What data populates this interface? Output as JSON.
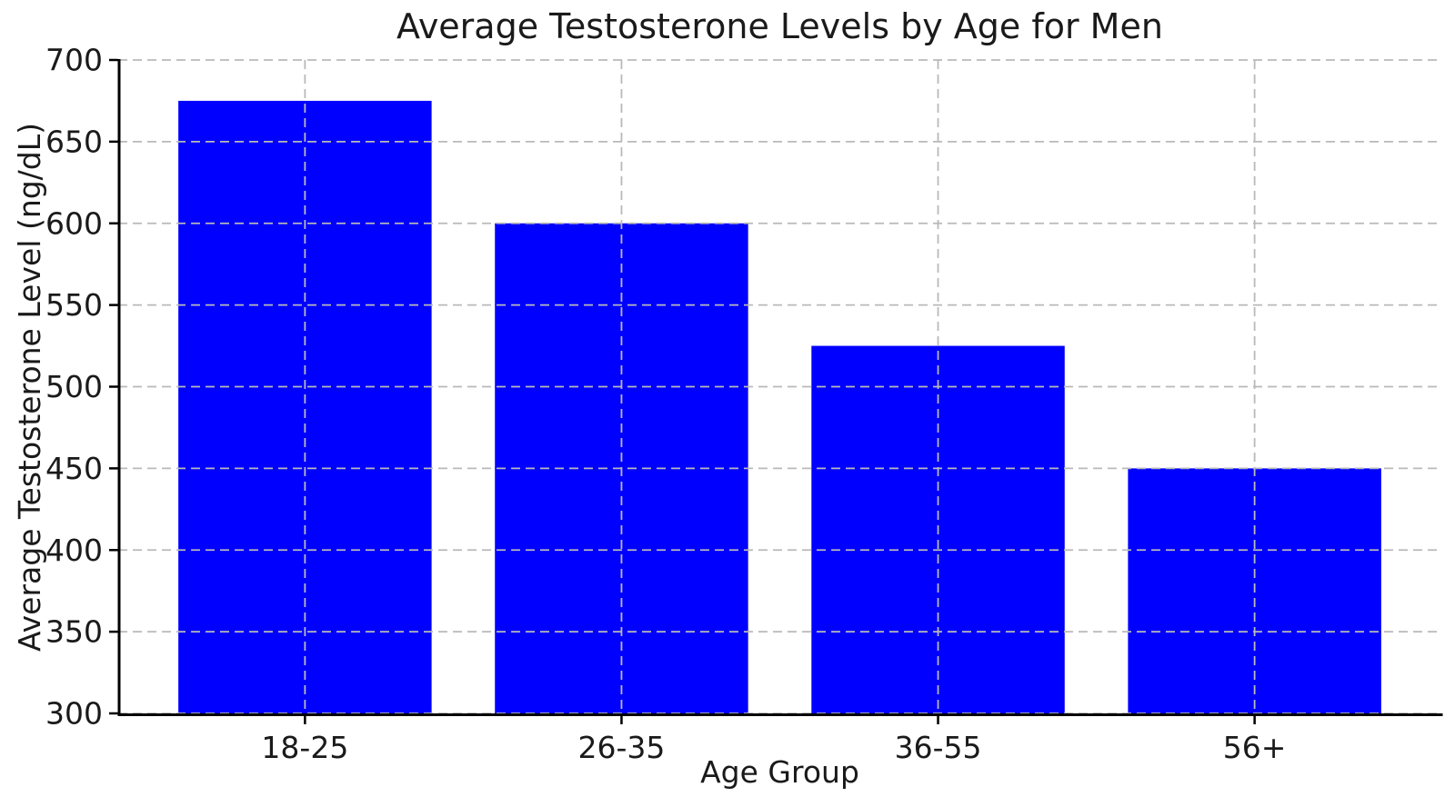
{
  "chart_data": {
    "type": "bar",
    "title": "Average Testosterone Levels by Age for Men",
    "xlabel": "Age Group",
    "ylabel": "Average Testosterone Level (ng/dL)",
    "categories": [
      "18-25",
      "26-35",
      "36-55",
      "56+"
    ],
    "values": [
      675,
      600,
      525,
      450
    ],
    "ylim": [
      300,
      700
    ],
    "yticks": [
      300,
      350,
      400,
      450,
      500,
      550,
      600,
      650,
      700
    ],
    "xlim": [
      -0.59,
      3.59
    ],
    "bar_width_ratio": 0.8,
    "bar_color": "#0000ff",
    "grid": "dashed",
    "grid_color": "#b9b9b9",
    "axis_color": "#000000",
    "text_color": "#1a1a1a",
    "legend_position": "none"
  }
}
